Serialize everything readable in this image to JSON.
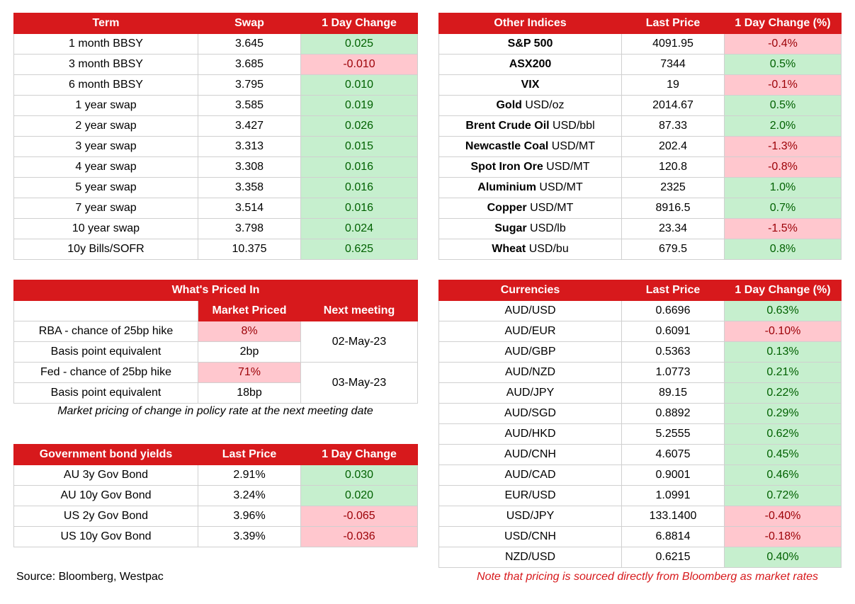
{
  "swaps": {
    "headers": [
      "Term",
      "Swap",
      "1 Day Change"
    ],
    "rows": [
      {
        "term": "1 month BBSY",
        "swap": "3.645",
        "change": "0.025",
        "dir": "pos"
      },
      {
        "term": "3 month BBSY",
        "swap": "3.685",
        "change": "-0.010",
        "dir": "neg"
      },
      {
        "term": "6 month BBSY",
        "swap": "3.795",
        "change": "0.010",
        "dir": "pos"
      },
      {
        "term": "1 year swap",
        "swap": "3.585",
        "change": "0.019",
        "dir": "pos"
      },
      {
        "term": "2 year swap",
        "swap": "3.427",
        "change": "0.026",
        "dir": "pos"
      },
      {
        "term": "3 year swap",
        "swap": "3.313",
        "change": "0.015",
        "dir": "pos"
      },
      {
        "term": "4 year swap",
        "swap": "3.308",
        "change": "0.016",
        "dir": "pos"
      },
      {
        "term": "5 year swap",
        "swap": "3.358",
        "change": "0.016",
        "dir": "pos"
      },
      {
        "term": "7 year swap",
        "swap": "3.514",
        "change": "0.016",
        "dir": "pos"
      },
      {
        "term": "10 year swap",
        "swap": "3.798",
        "change": "0.024",
        "dir": "pos"
      },
      {
        "term": "10y Bills/SOFR",
        "swap": "10.375",
        "change": "0.625",
        "dir": "pos"
      }
    ]
  },
  "indices": {
    "headers": [
      "Other Indices",
      "Last Price",
      "1 Day Change (%)"
    ],
    "rows": [
      {
        "name": "S&P 500",
        "unit": "",
        "price": "4091.95",
        "change": "-0.4%",
        "dir": "neg"
      },
      {
        "name": "ASX200",
        "unit": "",
        "price": "7344",
        "change": "0.5%",
        "dir": "pos"
      },
      {
        "name": "VIX",
        "unit": "",
        "price": "19",
        "change": "-0.1%",
        "dir": "neg"
      },
      {
        "name": "Gold",
        "unit": "USD/oz",
        "price": "2014.67",
        "change": "0.5%",
        "dir": "pos"
      },
      {
        "name": "Brent Crude Oil",
        "unit": "USD/bbl",
        "price": "87.33",
        "change": "2.0%",
        "dir": "pos"
      },
      {
        "name": "Newcastle Coal",
        "unit": "USD/MT",
        "price": "202.4",
        "change": "-1.3%",
        "dir": "neg"
      },
      {
        "name": "Spot Iron Ore",
        "unit": "USD/MT",
        "price": "120.8",
        "change": "-0.8%",
        "dir": "neg"
      },
      {
        "name": "Aluminium",
        "unit": "USD/MT",
        "price": "2325",
        "change": "1.0%",
        "dir": "pos"
      },
      {
        "name": "Copper",
        "unit": "USD/MT",
        "price": "8916.5",
        "change": "0.7%",
        "dir": "pos"
      },
      {
        "name": "Sugar",
        "unit": "USD/lb",
        "price": "23.34",
        "change": "-1.5%",
        "dir": "neg"
      },
      {
        "name": "Wheat",
        "unit": "USD/bu",
        "price": "679.5",
        "change": "0.8%",
        "dir": "pos"
      }
    ]
  },
  "priced": {
    "title": "What's Priced In",
    "col_market": "Market Priced",
    "col_next": "Next meeting",
    "rows": [
      {
        "label": "RBA - chance of 25bp hike",
        "value": "8%"
      },
      {
        "label": "Basis point equivalent",
        "value": "2bp"
      },
      {
        "label": "Fed - chance of 25bp hike",
        "value": "71%"
      },
      {
        "label": "Basis point equivalent",
        "value": "18bp"
      }
    ],
    "rba_date": "02-May-23",
    "fed_date": "03-May-23",
    "note": "Market pricing of change in policy rate at the next meeting date"
  },
  "bonds": {
    "headers": [
      "Government bond yields",
      "Last Price",
      "1 Day Change"
    ],
    "rows": [
      {
        "name": "AU 3y Gov Bond",
        "price": "2.91%",
        "change": "0.030",
        "dir": "pos"
      },
      {
        "name": "AU 10y Gov Bond",
        "price": "3.24%",
        "change": "0.020",
        "dir": "pos"
      },
      {
        "name": "US 2y Gov Bond",
        "price": "3.96%",
        "change": "-0.065",
        "dir": "neg"
      },
      {
        "name": "US 10y Gov Bond",
        "price": "3.39%",
        "change": "-0.036",
        "dir": "neg"
      }
    ]
  },
  "currencies": {
    "headers": [
      "Currencies",
      "Last Price",
      "1 Day Change (%)"
    ],
    "rows": [
      {
        "pair": "AUD/USD",
        "price": "0.6696",
        "change": "0.63%",
        "dir": "pos"
      },
      {
        "pair": "AUD/EUR",
        "price": "0.6091",
        "change": "-0.10%",
        "dir": "neg"
      },
      {
        "pair": "AUD/GBP",
        "price": "0.5363",
        "change": "0.13%",
        "dir": "pos"
      },
      {
        "pair": "AUD/NZD",
        "price": "1.0773",
        "change": "0.21%",
        "dir": "pos"
      },
      {
        "pair": "AUD/JPY",
        "price": "89.15",
        "change": "0.22%",
        "dir": "pos"
      },
      {
        "pair": "AUD/SGD",
        "price": "0.8892",
        "change": "0.29%",
        "dir": "pos"
      },
      {
        "pair": "AUD/HKD",
        "price": "5.2555",
        "change": "0.62%",
        "dir": "pos"
      },
      {
        "pair": "AUD/CNH",
        "price": "4.6075",
        "change": "0.45%",
        "dir": "pos"
      },
      {
        "pair": "AUD/CAD",
        "price": "0.9001",
        "change": "0.46%",
        "dir": "pos"
      },
      {
        "pair": "EUR/USD",
        "price": "1.0991",
        "change": "0.72%",
        "dir": "pos"
      },
      {
        "pair": "USD/JPY",
        "price": "133.1400",
        "change": "-0.40%",
        "dir": "neg"
      },
      {
        "pair": "USD/CNH",
        "price": "6.8814",
        "change": "-0.18%",
        "dir": "neg"
      },
      {
        "pair": "NZD/USD",
        "price": "0.6215",
        "change": "0.40%",
        "dir": "pos"
      }
    ]
  },
  "footer": {
    "source": "Source: Bloomberg, Westpac",
    "disclaimer": "Note that pricing is sourced directly from Bloomberg as market rates"
  },
  "colors": {
    "header": "#d7191c",
    "positive_fill": "#c6efce",
    "negative_fill": "#ffc7ce"
  }
}
